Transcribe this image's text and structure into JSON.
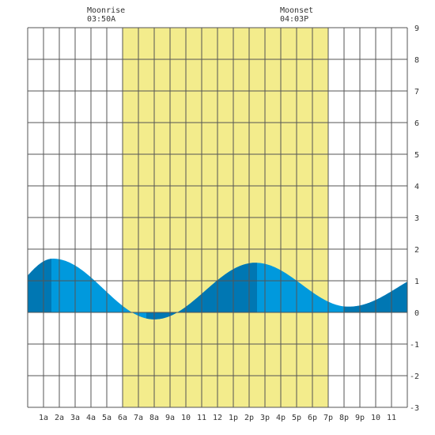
{
  "header": {
    "moonrise_label": "Moonrise",
    "moonrise_time": "03:50A",
    "moonset_label": "Moonset",
    "moonset_time": "04:03P"
  },
  "chart_data": {
    "type": "area",
    "title": "",
    "xlabel": "",
    "ylabel": "",
    "x_tick_labels": [
      "1a",
      "2a",
      "3a",
      "4a",
      "5a",
      "6a",
      "7a",
      "8a",
      "9a",
      "10",
      "11",
      "12",
      "1p",
      "2p",
      "3p",
      "4p",
      "5p",
      "6p",
      "7p",
      "8p",
      "9p",
      "10",
      "11"
    ],
    "y_tick_labels": [
      "9",
      "8",
      "7",
      "6",
      "5",
      "4",
      "3",
      "2",
      "1",
      "0",
      "-1",
      "-2",
      "-3"
    ],
    "xlim": [
      0,
      24
    ],
    "ylim": [
      -3,
      9
    ],
    "grid": true,
    "y_axis_position": "right",
    "daylight": {
      "start_hour": 6.0,
      "end_hour": 19.0,
      "color": "#f3ec8c"
    },
    "moonrise_hour": 3.83,
    "moonset_hour": 16.05,
    "series": [
      {
        "type": "tide",
        "color_light": "#0099dd",
        "color_dark": "#0077b3",
        "extremes": [
          {
            "hour": -2.0,
            "value": 0.4
          },
          {
            "hour": 1.6,
            "value": 1.7
          },
          {
            "hour": 8.0,
            "value": -0.22
          },
          {
            "hour": 14.4,
            "value": 1.57
          },
          {
            "hour": 20.3,
            "value": 0.18
          },
          {
            "hour": 26.5,
            "value": 1.4
          }
        ]
      }
    ],
    "dark_bands_hours": [
      [
        0,
        1.5
      ],
      [
        7.5,
        14.5
      ],
      [
        20,
        24
      ]
    ]
  },
  "colors": {
    "grid": "#555555",
    "background": "#ffffff"
  }
}
